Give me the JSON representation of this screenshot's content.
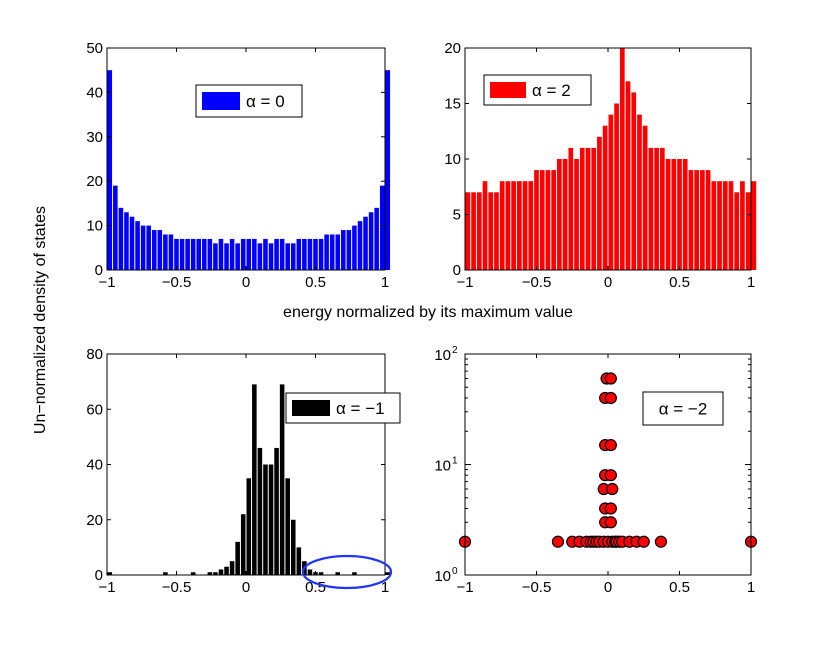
{
  "figure": {
    "shared_ylabel": "Un−normalized density of states",
    "shared_xlabel": "energy normalized by its maximum value"
  },
  "chart_data": [
    {
      "type": "bar",
      "panel": "top-left",
      "legend": "α = 0",
      "color": "#0000ff",
      "xlim": [
        -1,
        1
      ],
      "ylim": [
        0,
        50
      ],
      "xticks": [
        "−1",
        "−0.5",
        "0",
        "0.5",
        "1"
      ],
      "yticks": [
        "0",
        "10",
        "20",
        "30",
        "40",
        "50"
      ],
      "bin_start": -1,
      "bin_width": 0.04,
      "values": [
        45,
        19,
        14,
        13,
        12,
        11,
        10,
        10,
        9,
        9,
        8,
        8,
        7,
        7,
        7,
        7,
        7,
        7,
        7,
        6,
        7,
        6,
        7,
        6,
        7,
        7,
        7,
        6,
        7,
        6,
        7,
        7,
        6,
        6,
        7,
        7,
        7,
        7,
        7,
        8,
        8,
        8,
        9,
        9,
        10,
        11,
        12,
        13,
        14,
        19,
        45
      ]
    },
    {
      "type": "bar",
      "panel": "top-right",
      "legend": "α = 2",
      "color": "#ff0000",
      "xlim": [
        -1,
        1
      ],
      "ylim": [
        0,
        20
      ],
      "xticks": [
        "−1",
        "−0.5",
        "0",
        "0.5",
        "1"
      ],
      "yticks": [
        "0",
        "5",
        "10",
        "15",
        "20"
      ],
      "bin_start": -1,
      "bin_width": 0.04,
      "values": [
        7,
        7,
        7,
        8,
        7,
        7,
        8,
        8,
        8,
        8,
        8,
        8,
        9,
        9,
        9,
        9,
        10,
        10,
        11,
        10,
        11,
        11,
        11,
        12,
        13,
        14,
        15,
        20,
        17,
        16,
        14,
        13,
        11,
        11,
        11,
        10,
        10,
        10,
        10,
        9,
        9,
        9,
        9,
        8,
        8,
        8,
        8,
        7,
        8,
        7,
        8
      ]
    },
    {
      "type": "bar",
      "panel": "bottom-left",
      "legend": "α = −1",
      "color": "#000000",
      "xlim": [
        -1,
        1
      ],
      "ylim": [
        0,
        80
      ],
      "xticks": [
        "−1",
        "−0.5",
        "0",
        "0.5",
        "1"
      ],
      "yticks": [
        "0",
        "20",
        "40",
        "60",
        "80"
      ],
      "bin_start": -1,
      "bin_width": 0.04,
      "values": [
        1,
        0,
        0,
        0,
        0,
        0,
        0,
        0,
        0,
        0,
        1,
        0,
        0,
        0,
        0,
        1,
        0,
        0,
        1,
        1,
        2,
        3,
        5,
        12,
        22,
        35,
        69,
        46,
        40,
        40,
        46,
        69,
        35,
        20,
        10,
        5,
        2,
        1,
        1,
        0,
        0,
        1,
        0,
        0,
        1,
        0,
        0,
        0,
        0,
        0,
        1
      ],
      "annotation": "ellipse around isolated bars near x = 0.75"
    },
    {
      "type": "scatter",
      "panel": "bottom-right",
      "legend": "α = −2",
      "color": "#ff0000",
      "yscale": "log",
      "xlim": [
        -1,
        1
      ],
      "ylim": [
        1,
        100
      ],
      "xticks": [
        "−1",
        "−0.5",
        "0",
        "0.5",
        "1"
      ],
      "yticks": [
        "10",
        "10",
        "10"
      ],
      "ytick_exponents": [
        "0",
        "1",
        "2"
      ],
      "x": [
        -1,
        -0.35,
        -0.25,
        -0.2,
        -0.15,
        -0.12,
        -0.1,
        -0.08,
        -0.06,
        -0.03,
        0,
        0.03,
        0.05,
        0.06,
        0.08,
        0.1,
        0.15,
        0.2,
        0.25,
        0.37,
        1,
        -0.02,
        0.02,
        -0.02,
        0.02,
        -0.03,
        0.03,
        -0.02,
        0.02,
        -0.02,
        0.02,
        -0.02,
        0.02,
        -0.01,
        0.02
      ],
      "y": [
        2,
        2,
        2,
        2,
        2,
        2,
        2,
        2,
        2,
        2,
        2,
        2,
        2,
        2,
        2,
        2,
        2,
        2,
        2,
        2,
        2,
        3,
        3,
        4,
        4,
        6,
        6,
        8,
        8,
        15,
        15,
        40,
        40,
        60,
        60
      ]
    }
  ]
}
